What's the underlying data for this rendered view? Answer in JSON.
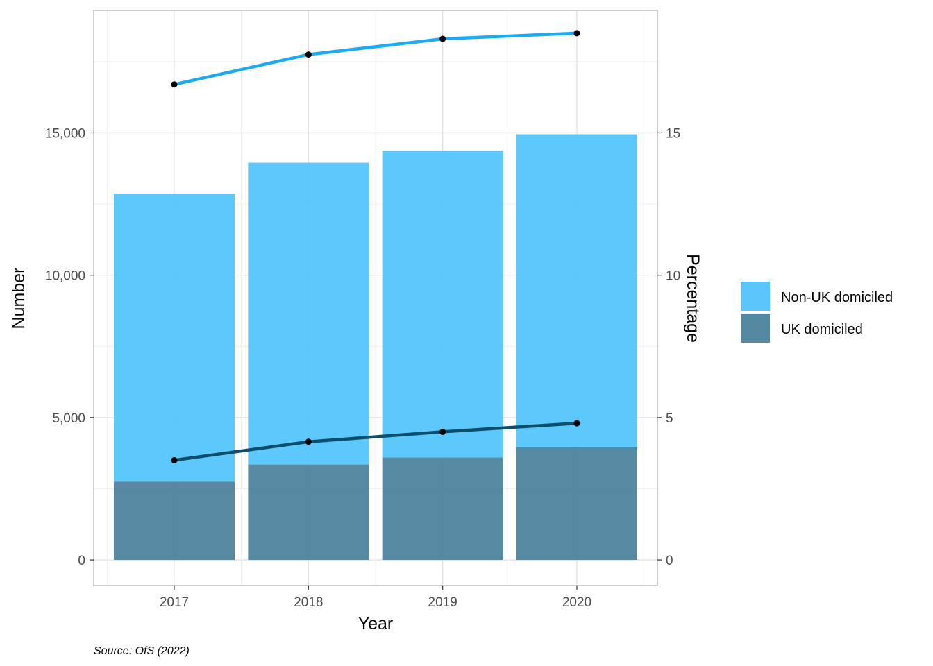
{
  "chart_data": {
    "type": "bar",
    "title": "",
    "xlabel": "Year",
    "ylabel": "Number",
    "y2label": "Percentage",
    "categories": [
      "2017",
      "2018",
      "2019",
      "2020"
    ],
    "ylim": [
      -900,
      19300
    ],
    "y_ticks": [
      0,
      5000,
      10000,
      15000
    ],
    "y_tick_labels": [
      "0",
      "5,000",
      "10,000",
      "15,000"
    ],
    "y2_ticks": [
      0,
      5,
      10,
      15
    ],
    "y2_tick_labels": [
      "0",
      "5",
      "10",
      "15"
    ],
    "grid": true,
    "stacked": true,
    "bar_series": [
      {
        "name": "UK domiciled",
        "color": "#4a7f9b",
        "values": [
          2750,
          3350,
          3600,
          3950
        ]
      },
      {
        "name": "Non-UK domiciled",
        "color": "#4fc3fb",
        "values": [
          10100,
          10600,
          10780,
          11000
        ]
      }
    ],
    "line_series": [
      {
        "axis": "right",
        "color": "#1eaaf1",
        "values": [
          16.7,
          17.75,
          18.3,
          18.5
        ]
      },
      {
        "axis": "right",
        "color": "#0b4f6c",
        "values": [
          3.5,
          4.15,
          4.5,
          4.8
        ]
      }
    ],
    "legend": {
      "placement": "right",
      "items": [
        {
          "label": "Non-UK domiciled",
          "color": "#5bc6fc"
        },
        {
          "label": "UK domiciled",
          "color": "#5489a1"
        }
      ]
    },
    "caption": "Source: OfS (2022)"
  }
}
